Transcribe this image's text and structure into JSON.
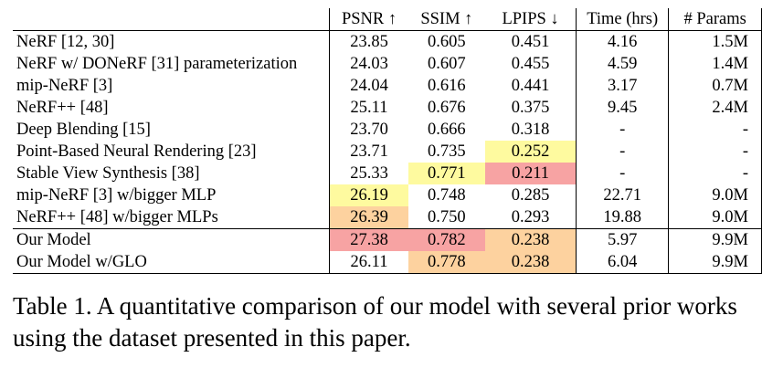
{
  "colors": {
    "first": "#f7a3a3",
    "second": "#fdd29f",
    "third": "#fefa9f"
  },
  "table": {
    "headers": {
      "psnr": "PSNR ↑",
      "ssim": "SSIM ↑",
      "lpips": "LPIPS ↓",
      "time": "Time (hrs)",
      "params": "# Params"
    },
    "rows": [
      {
        "method": "NeRF [12, 30]",
        "psnr": "23.85",
        "ssim": "0.605",
        "lpips": "0.451",
        "time": "4.16",
        "params": "1.5M"
      },
      {
        "method": "NeRF w/ DONeRF [31] parameterization",
        "psnr": "24.03",
        "ssim": "0.607",
        "lpips": "0.455",
        "time": "4.59",
        "params": "1.4M"
      },
      {
        "method": "mip-NeRF [3]",
        "psnr": "24.04",
        "ssim": "0.616",
        "lpips": "0.441",
        "time": "3.17",
        "params": "0.7M"
      },
      {
        "method": "NeRF++ [48]",
        "psnr": "25.11",
        "ssim": "0.676",
        "lpips": "0.375",
        "time": "9.45",
        "params": "2.4M"
      },
      {
        "method": "Deep Blending [15]",
        "psnr": "23.70",
        "ssim": "0.666",
        "lpips": "0.318",
        "time": "-",
        "params": "-"
      },
      {
        "method": "Point-Based Neural Rendering [23]",
        "psnr": "23.71",
        "ssim": "0.735",
        "lpips": "0.252",
        "time": "-",
        "params": "-"
      },
      {
        "method": "Stable View Synthesis [38]",
        "psnr": "25.33",
        "ssim": "0.771",
        "lpips": "0.211",
        "time": "-",
        "params": "-"
      },
      {
        "method": "mip-NeRF [3] w/bigger MLP",
        "psnr": "26.19",
        "ssim": "0.748",
        "lpips": "0.285",
        "time": "22.71",
        "params": "9.0M"
      },
      {
        "method": "NeRF++ [48] w/bigger MLPs",
        "psnr": "26.39",
        "ssim": "0.750",
        "lpips": "0.293",
        "time": "19.88",
        "params": "9.0M"
      },
      {
        "method": "Our Model",
        "psnr": "27.38",
        "ssim": "0.782",
        "lpips": "0.238",
        "time": "5.97",
        "params": "9.9M"
      },
      {
        "method": "Our Model w/GLO",
        "psnr": "26.11",
        "ssim": "0.778",
        "lpips": "0.238",
        "time": "6.04",
        "params": "9.9M"
      }
    ]
  },
  "caption": "Table 1. A quantitative comparison of our model with several prior works using the dataset presented in this paper."
}
